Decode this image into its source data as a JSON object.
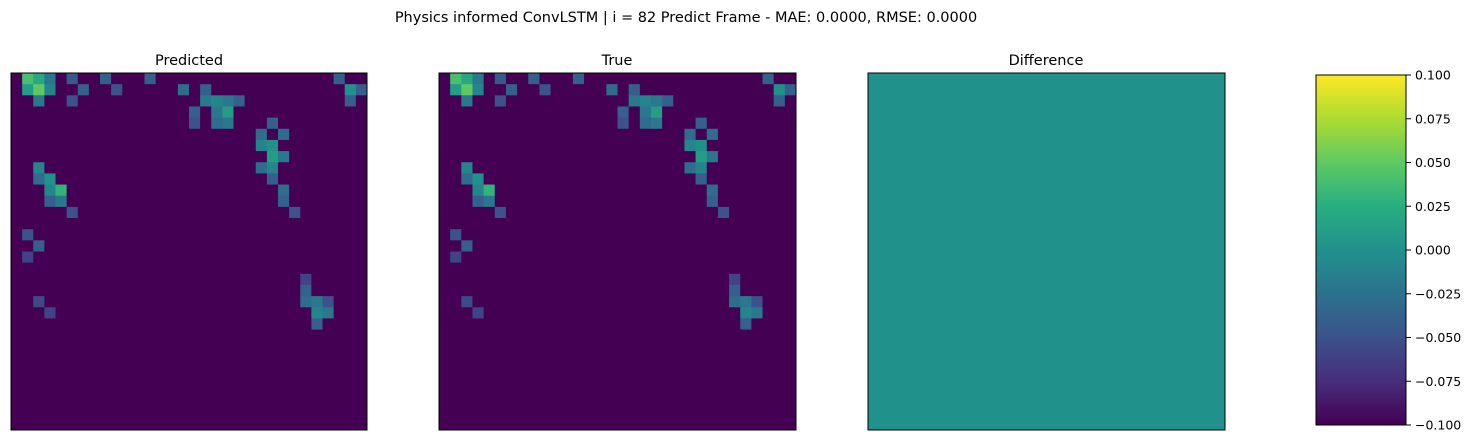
{
  "chart_data": [
    {
      "type": "heatmap",
      "title": "Physics informed ConvLSTM | i = 82 Predict Frame - MAE: 0.0000, RMSE: 0.0000",
      "panels": [
        {
          "title": "Predicted",
          "field": "frame"
        },
        {
          "title": "True",
          "field": "frame"
        },
        {
          "title": "Difference",
          "field": "zero"
        }
      ],
      "grid": {
        "rows": 32,
        "cols": 32
      },
      "colormap": "viridis",
      "frame_cells": [
        {
          "r": 0,
          "c": 1,
          "v": 0.7
        },
        {
          "r": 0,
          "c": 2,
          "v": 0.6
        },
        {
          "r": 1,
          "c": 1,
          "v": 0.55
        },
        {
          "r": 1,
          "c": 2,
          "v": 0.75
        },
        {
          "r": 0,
          "c": 3,
          "v": 0.4
        },
        {
          "r": 1,
          "c": 3,
          "v": 0.45
        },
        {
          "r": 2,
          "c": 2,
          "v": 0.4
        },
        {
          "r": 0,
          "c": 5,
          "v": 0.28
        },
        {
          "r": 1,
          "c": 6,
          "v": 0.3
        },
        {
          "r": 2,
          "c": 5,
          "v": 0.25
        },
        {
          "r": 0,
          "c": 8,
          "v": 0.3
        },
        {
          "r": 1,
          "c": 9,
          "v": 0.25
        },
        {
          "r": 0,
          "c": 12,
          "v": 0.3
        },
        {
          "r": 1,
          "c": 15,
          "v": 0.35
        },
        {
          "r": 1,
          "c": 17,
          "v": 0.3
        },
        {
          "r": 2,
          "c": 17,
          "v": 0.4
        },
        {
          "r": 2,
          "c": 18,
          "v": 0.45
        },
        {
          "r": 2,
          "c": 19,
          "v": 0.4
        },
        {
          "r": 3,
          "c": 19,
          "v": 0.55
        },
        {
          "r": 2,
          "c": 20,
          "v": 0.3
        },
        {
          "r": 3,
          "c": 18,
          "v": 0.4
        },
        {
          "r": 4,
          "c": 18,
          "v": 0.35
        },
        {
          "r": 4,
          "c": 19,
          "v": 0.4
        },
        {
          "r": 3,
          "c": 16,
          "v": 0.3
        },
        {
          "r": 4,
          "c": 16,
          "v": 0.25
        },
        {
          "r": 0,
          "c": 29,
          "v": 0.3
        },
        {
          "r": 1,
          "c": 30,
          "v": 0.5
        },
        {
          "r": 1,
          "c": 31,
          "v": 0.3
        },
        {
          "r": 2,
          "c": 30,
          "v": 0.3
        },
        {
          "r": 4,
          "c": 23,
          "v": 0.3
        },
        {
          "r": 5,
          "c": 22,
          "v": 0.35
        },
        {
          "r": 5,
          "c": 24,
          "v": 0.35
        },
        {
          "r": 6,
          "c": 22,
          "v": 0.45
        },
        {
          "r": 6,
          "c": 23,
          "v": 0.5
        },
        {
          "r": 7,
          "c": 23,
          "v": 0.55
        },
        {
          "r": 7,
          "c": 24,
          "v": 0.4
        },
        {
          "r": 8,
          "c": 22,
          "v": 0.35
        },
        {
          "r": 8,
          "c": 23,
          "v": 0.45
        },
        {
          "r": 9,
          "c": 23,
          "v": 0.3
        },
        {
          "r": 10,
          "c": 24,
          "v": 0.35
        },
        {
          "r": 11,
          "c": 24,
          "v": 0.3
        },
        {
          "r": 12,
          "c": 25,
          "v": 0.25
        },
        {
          "r": 8,
          "c": 2,
          "v": 0.45
        },
        {
          "r": 9,
          "c": 3,
          "v": 0.5
        },
        {
          "r": 10,
          "c": 4,
          "v": 0.65
        },
        {
          "r": 9,
          "c": 2,
          "v": 0.35
        },
        {
          "r": 10,
          "c": 3,
          "v": 0.45
        },
        {
          "r": 11,
          "c": 4,
          "v": 0.4
        },
        {
          "r": 11,
          "c": 3,
          "v": 0.3
        },
        {
          "r": 12,
          "c": 5,
          "v": 0.25
        },
        {
          "r": 14,
          "c": 1,
          "v": 0.25
        },
        {
          "r": 15,
          "c": 2,
          "v": 0.3
        },
        {
          "r": 16,
          "c": 1,
          "v": 0.2
        },
        {
          "r": 20,
          "c": 2,
          "v": 0.22
        },
        {
          "r": 21,
          "c": 3,
          "v": 0.2
        },
        {
          "r": 19,
          "c": 26,
          "v": 0.3
        },
        {
          "r": 20,
          "c": 27,
          "v": 0.4
        },
        {
          "r": 20,
          "c": 26,
          "v": 0.35
        },
        {
          "r": 21,
          "c": 27,
          "v": 0.45
        },
        {
          "r": 21,
          "c": 28,
          "v": 0.4
        },
        {
          "r": 20,
          "c": 28,
          "v": 0.25
        },
        {
          "r": 22,
          "c": 27,
          "v": 0.3
        },
        {
          "r": 18,
          "c": 26,
          "v": 0.2
        }
      ],
      "colorbar": {
        "ticks": [
          0.1,
          0.075,
          0.05,
          0.025,
          0.0,
          -0.025,
          -0.05,
          -0.075,
          -0.1
        ],
        "tick_labels": [
          "0.100",
          "0.075",
          "0.050",
          "0.025",
          "0.000",
          "−0.025",
          "−0.050",
          "−0.075",
          "−0.100"
        ],
        "range": [
          -0.1,
          0.1
        ]
      }
    }
  ]
}
